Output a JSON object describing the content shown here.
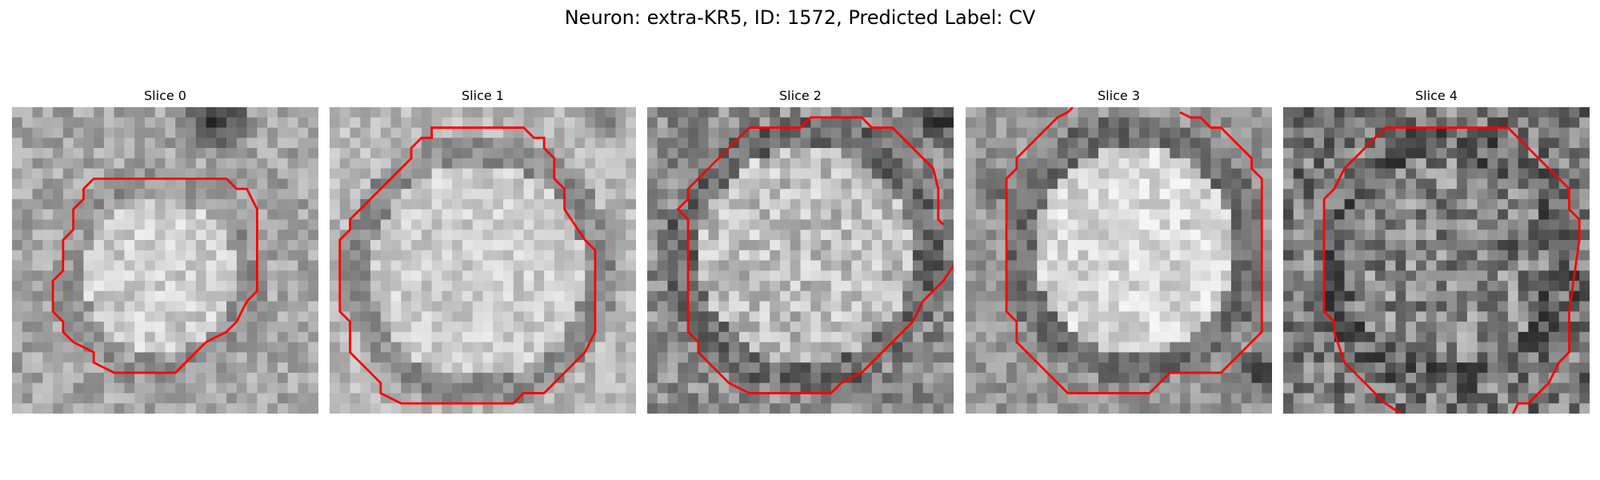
{
  "title": "Neuron: extra-KR5, ID: 1572, Predicted Label: CV",
  "contour_color": "#ff0000",
  "colormap": "grayscale",
  "panels": [
    {
      "label": "Slice 0"
    },
    {
      "label": "Slice 1"
    },
    {
      "label": "Slice 2"
    },
    {
      "label": "Slice 3"
    },
    {
      "label": "Slice 4"
    }
  ]
}
